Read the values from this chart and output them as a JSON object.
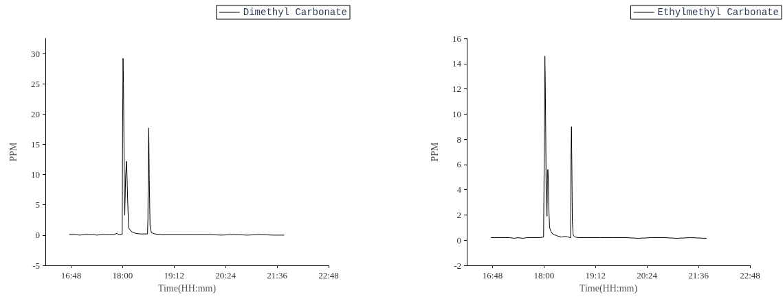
{
  "chart_data": [
    {
      "type": "line",
      "xlabel": "Time(HH:mm)",
      "ylabel": "PPM",
      "legend": "top right",
      "grid": false,
      "marker": "none",
      "line_style": "solid",
      "xlim": [
        16.2,
        22.8
      ],
      "ylim": [
        -5,
        32.5
      ],
      "xticks": [
        {
          "value": 16.8,
          "label": "16:48"
        },
        {
          "value": 18,
          "label": "18:00"
        },
        {
          "value": 19.2,
          "label": "19:12"
        },
        {
          "value": 20.4,
          "label": "20:24"
        },
        {
          "value": 21.6,
          "label": "21:36"
        },
        {
          "value": 22.8,
          "label": "22:48"
        }
      ],
      "yticks": [
        -5,
        0,
        5,
        10,
        15,
        20,
        25,
        30
      ],
      "series": [
        {
          "name": "Dimethyl Carbonate",
          "color": "#000000",
          "x": [
            16.76,
            16.9,
            17.0,
            17.1,
            17.2,
            17.3,
            17.4,
            17.5,
            17.6,
            17.7,
            17.8,
            17.87,
            17.9,
            17.99,
            18.0,
            18.01,
            18.02,
            18.03,
            18.04,
            18.05,
            18.07,
            18.08,
            18.09,
            18.1,
            18.12,
            18.14,
            18.2,
            18.3,
            18.4,
            18.5,
            18.58,
            18.59,
            18.6,
            18.61,
            18.62,
            18.64,
            18.67,
            18.75,
            18.9,
            19.1,
            19.4,
            19.7,
            20.0,
            20.3,
            20.6,
            20.9,
            21.2,
            21.5,
            21.76
          ],
          "values": [
            0.1,
            0.1,
            0.0,
            0.1,
            0.1,
            0.1,
            0.0,
            0.1,
            0.1,
            0.1,
            0.1,
            0.3,
            0.1,
            0.1,
            17.8,
            29.2,
            25.2,
            16.3,
            7,
            3.3,
            9.5,
            11,
            12.2,
            10.5,
            5.3,
            1.2,
            0.6,
            0.3,
            0.2,
            0.2,
            0.2,
            2.6,
            14,
            17.7,
            10,
            1.5,
            0.4,
            0.2,
            0.1,
            0.1,
            0.1,
            0.1,
            0.1,
            0.0,
            0.1,
            0.0,
            0.1,
            0.0,
            0.0
          ]
        }
      ]
    },
    {
      "type": "line",
      "xlabel": "Time(HH:mm)",
      "ylabel": "PPM",
      "legend": "top right",
      "grid": false,
      "marker": "none",
      "line_style": "solid",
      "xlim": [
        16.2,
        22.8
      ],
      "ylim": [
        -2,
        16
      ],
      "xticks": [
        {
          "value": 16.8,
          "label": "16:48"
        },
        {
          "value": 18,
          "label": "18:00"
        },
        {
          "value": 19.2,
          "label": "19:12"
        },
        {
          "value": 20.4,
          "label": "20:24"
        },
        {
          "value": 21.6,
          "label": "21:36"
        },
        {
          "value": 22.8,
          "label": "22:48"
        }
      ],
      "yticks": [
        -2,
        0,
        2,
        4,
        6,
        8,
        10,
        12,
        14,
        16
      ],
      "series": [
        {
          "name": "Ethylmethyl Carbonate",
          "color": "#000000",
          "x": [
            16.77,
            16.9,
            17.0,
            17.1,
            17.2,
            17.3,
            17.4,
            17.5,
            17.6,
            17.7,
            17.8,
            17.9,
            17.99,
            18.01,
            18.02,
            18.03,
            18.04,
            18.05,
            18.07,
            18.08,
            18.09,
            18.1,
            18.11,
            18.13,
            18.16,
            18.2,
            18.3,
            18.4,
            18.5,
            18.62,
            18.63,
            18.64,
            18.65,
            18.66,
            18.68,
            18.72,
            18.8,
            19.0,
            19.3,
            19.6,
            19.9,
            20.2,
            20.5,
            20.8,
            21.1,
            21.4,
            21.78
          ],
          "values": [
            0.2,
            0.2,
            0.2,
            0.2,
            0.2,
            0.15,
            0.2,
            0.15,
            0.2,
            0.2,
            0.2,
            0.2,
            0.25,
            9,
            14.6,
            12.5,
            8.5,
            4,
            1.9,
            5.3,
            5.6,
            4.9,
            2.7,
            1.0,
            0.7,
            0.5,
            0.35,
            0.25,
            0.3,
            0.2,
            7,
            9,
            5.5,
            1.5,
            0.4,
            0.25,
            0.2,
            0.2,
            0.2,
            0.2,
            0.2,
            0.15,
            0.2,
            0.2,
            0.15,
            0.2,
            0.15
          ]
        }
      ]
    }
  ]
}
